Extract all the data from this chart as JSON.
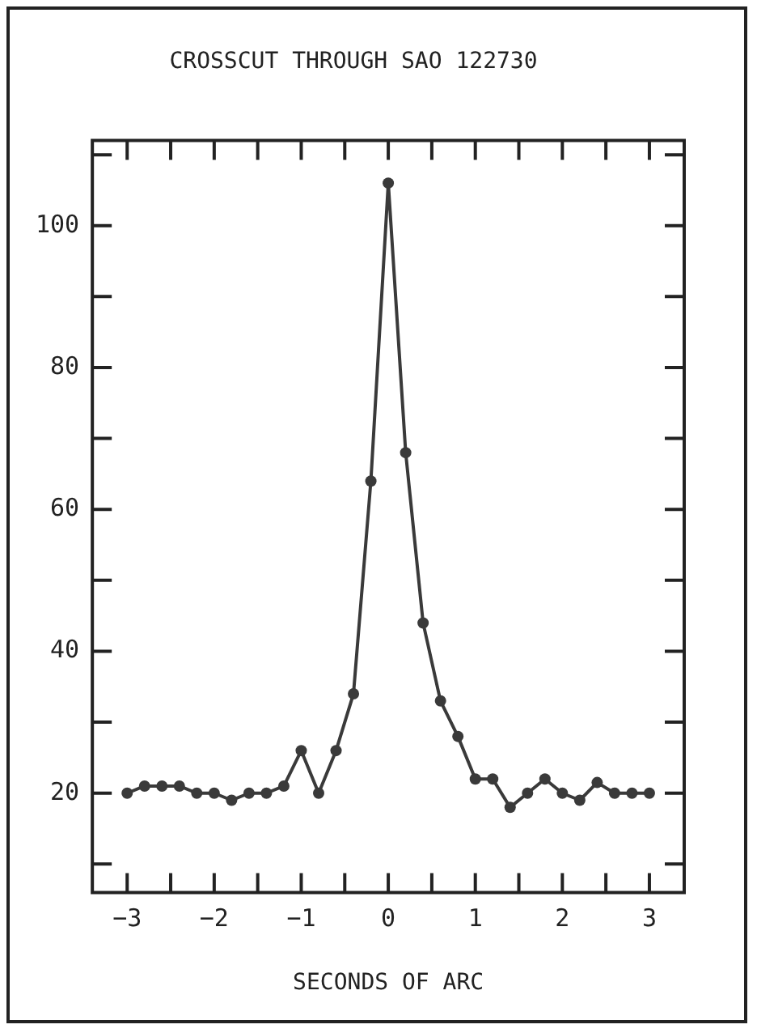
{
  "chart_data": {
    "type": "line",
    "title": "CROSSCUT THROUGH SAO 122730",
    "xlabel": "SECONDS OF ARC",
    "x": [
      -3.0,
      -2.8,
      -2.6,
      -2.4,
      -2.2,
      -2.0,
      -1.8,
      -1.6,
      -1.4,
      -1.2,
      -1.0,
      -0.8,
      -0.6,
      -0.4,
      -0.2,
      0.0,
      0.2,
      0.4,
      0.6,
      0.8,
      1.0,
      1.2,
      1.4,
      1.6,
      1.8,
      2.0,
      2.2,
      2.4,
      2.6,
      2.8,
      3.0
    ],
    "series": [
      {
        "color": "#3a3a3a",
        "values": [
          20,
          21,
          21,
          21,
          20,
          20,
          19,
          20,
          20,
          21,
          26,
          20,
          26,
          34,
          64,
          106,
          68,
          44,
          33,
          28,
          22,
          22,
          18,
          20,
          22,
          20,
          19,
          21.5,
          20,
          20,
          20
        ]
      }
    ],
    "xlim": [
      -3.4,
      3.4
    ],
    "xticks": [
      {
        "value": -3,
        "label": "−3"
      },
      {
        "value": -2.5,
        "label": null
      },
      {
        "value": -2,
        "label": "−2"
      },
      {
        "value": -1.5,
        "label": null
      },
      {
        "value": -1,
        "label": "−1"
      },
      {
        "value": -0.5,
        "label": null
      },
      0,
      {
        "value": 0.5,
        "label": null
      },
      1,
      {
        "value": 1.5,
        "label": null
      },
      2,
      {
        "value": 2.5,
        "label": null
      },
      3
    ],
    "ylim": [
      6,
      112
    ],
    "yticks": [
      {
        "value": 10,
        "label": null
      },
      20,
      {
        "value": 30,
        "label": null
      },
      40,
      {
        "value": 50,
        "label": null
      },
      60,
      {
        "value": 70,
        "label": null
      },
      80,
      {
        "value": 90,
        "label": null
      },
      100,
      {
        "value": 110,
        "label": null
      }
    ],
    "grid": false,
    "legend": false,
    "marker": "circle",
    "line_style": "solid"
  }
}
